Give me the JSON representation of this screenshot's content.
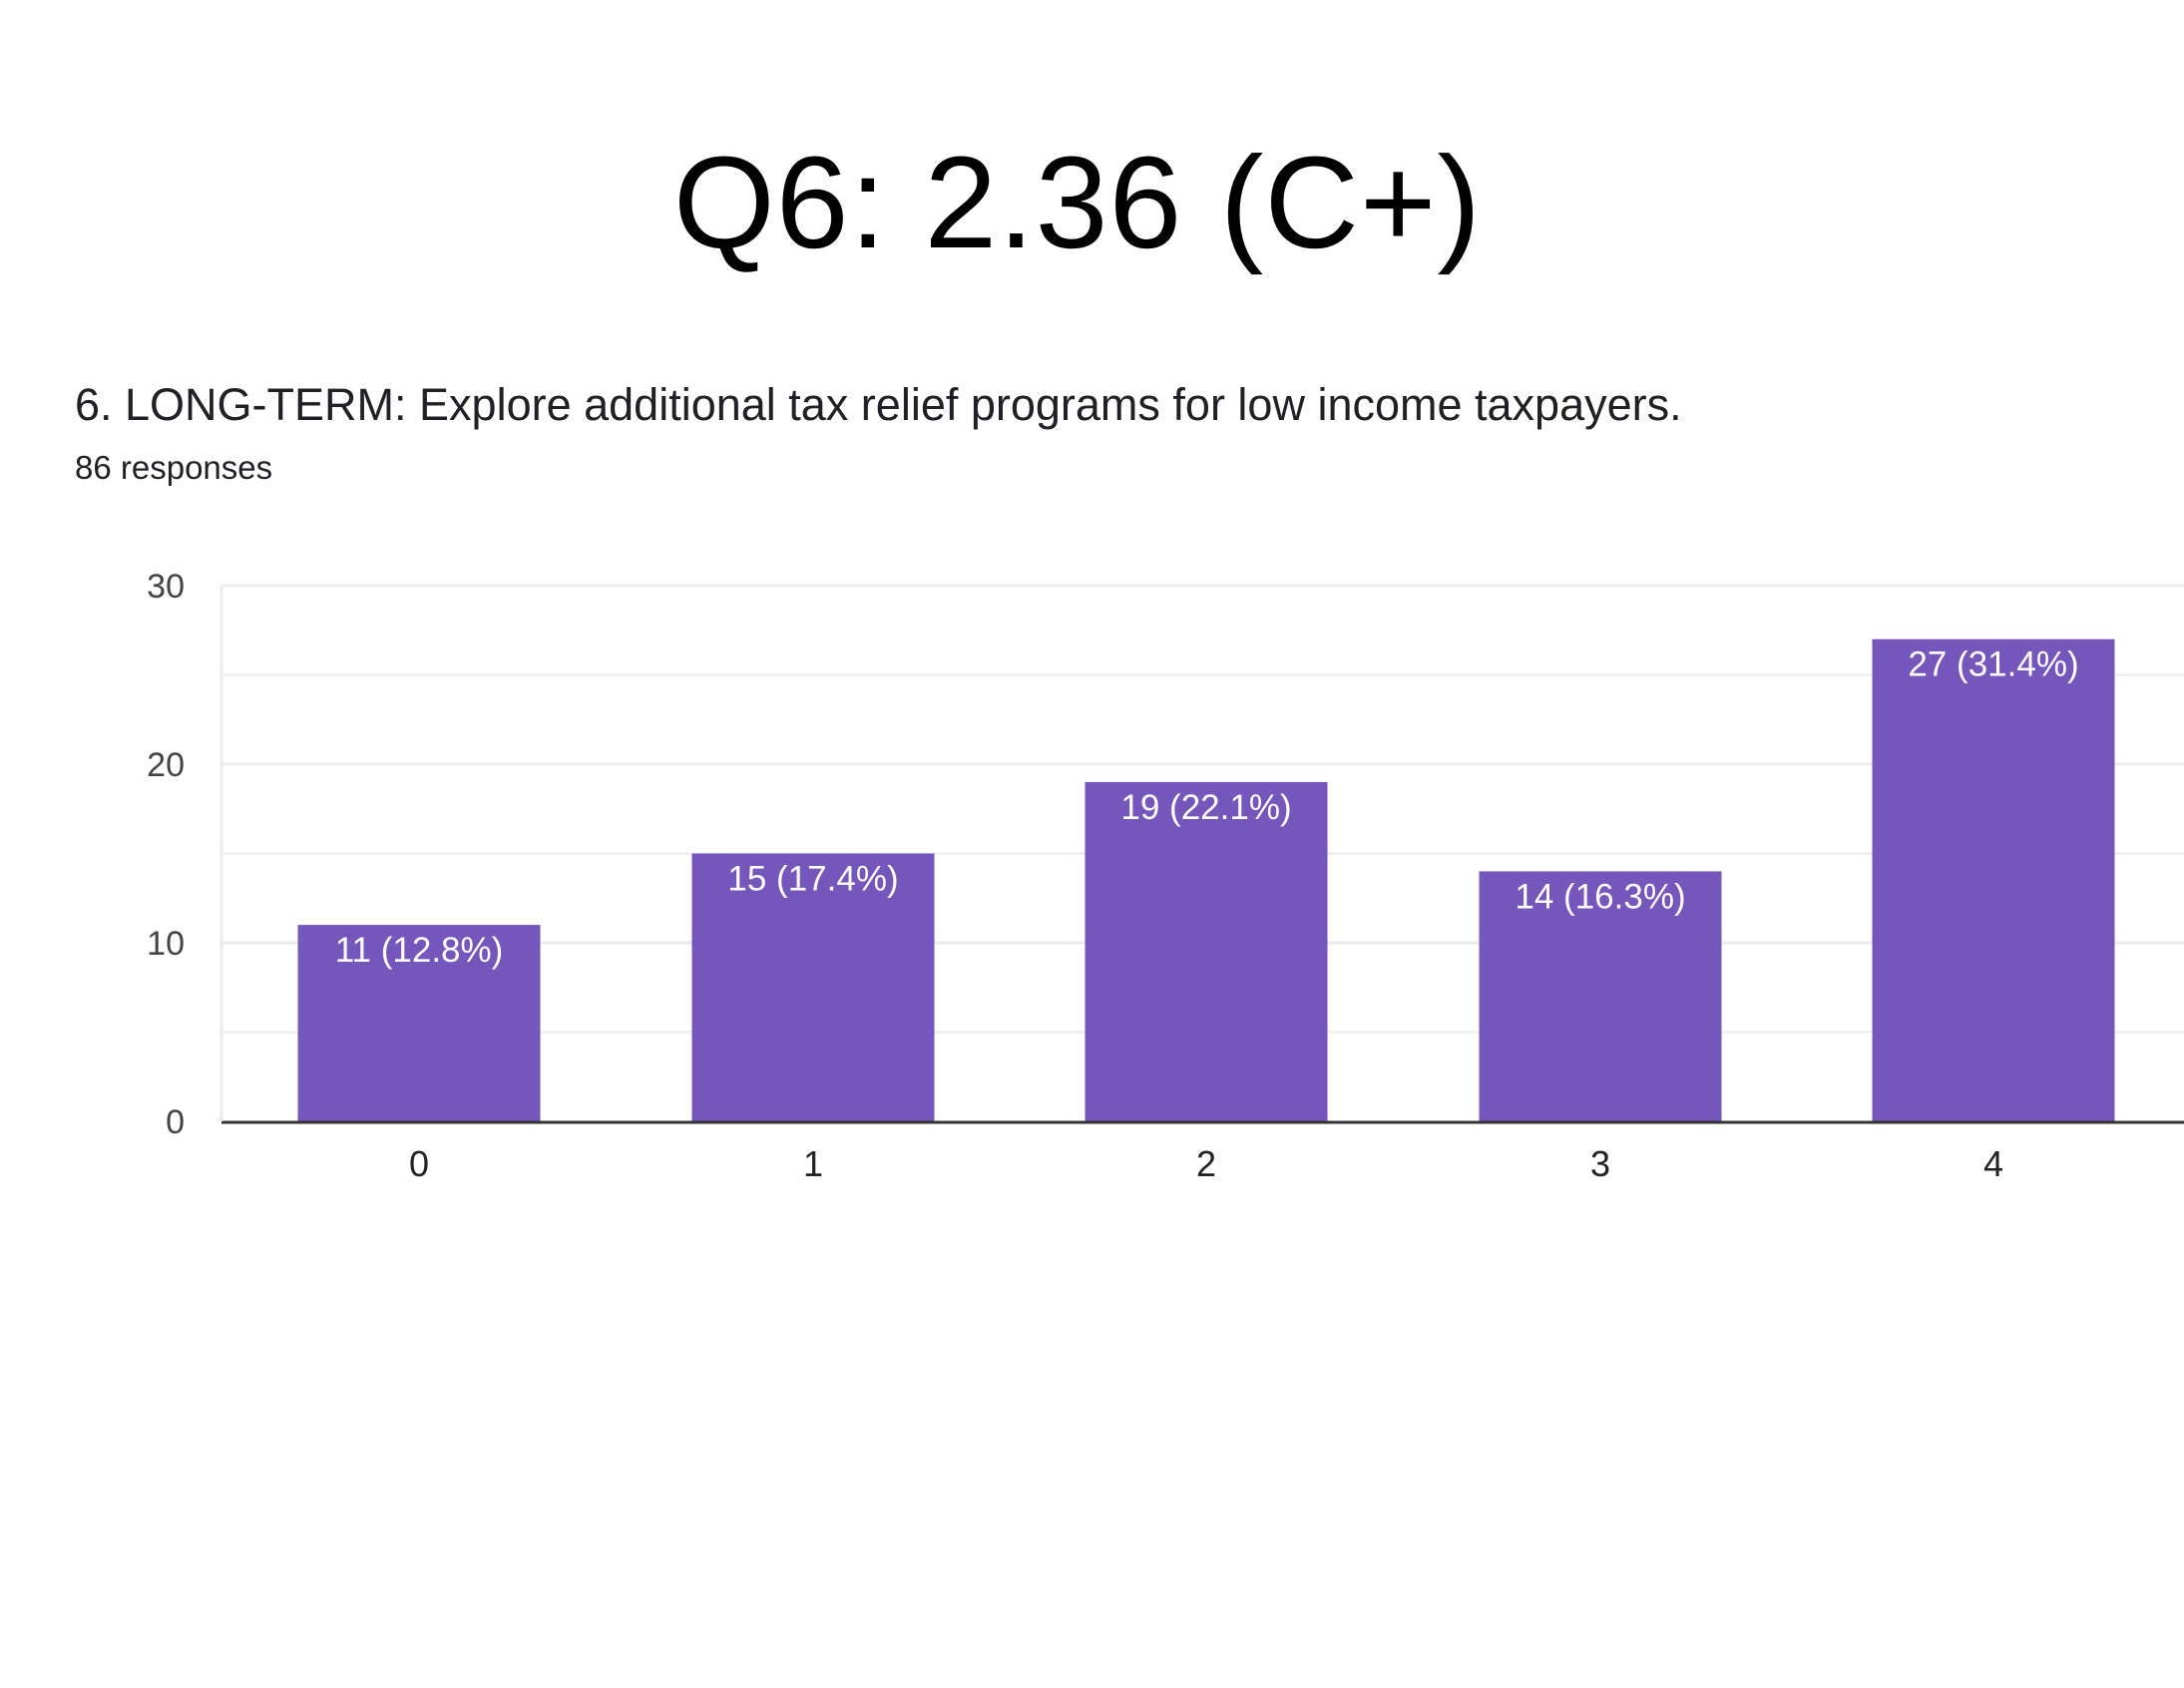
{
  "header": {
    "title": "Q6: 2.36 (C+)"
  },
  "question": {
    "text": "6. LONG-TERM: Explore additional tax relief programs for low income taxpayers.",
    "responses": "86 responses"
  },
  "colors": {
    "bar": "#7556BB",
    "grid": "#EBEBEB",
    "axis": "#333333"
  },
  "chart_data": {
    "type": "bar",
    "categories": [
      "0",
      "1",
      "2",
      "3",
      "4"
    ],
    "values": [
      11,
      15,
      19,
      14,
      27
    ],
    "data_labels": [
      "11 (12.8%)",
      "15 (17.4%)",
      "19 (22.1%)",
      "14 (16.3%)",
      "27 (31.4%)"
    ],
    "yticks": [
      0,
      10,
      20,
      30
    ],
    "ylim": [
      0,
      30
    ],
    "grid": true,
    "legend": "none"
  }
}
